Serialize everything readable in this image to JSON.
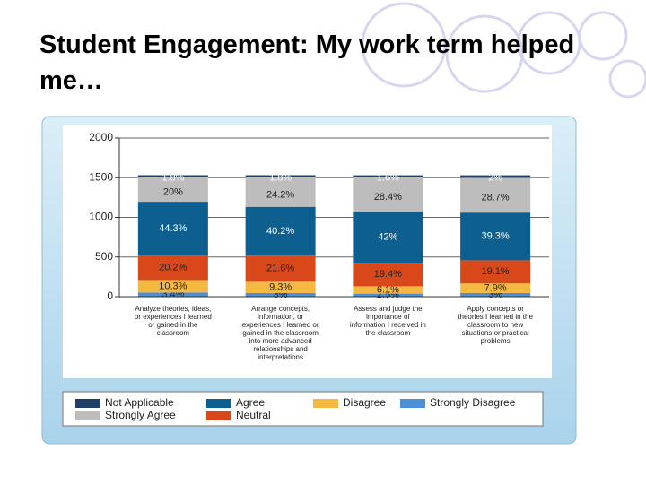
{
  "title": "Student Engagement: My work term helped me…",
  "chart_data": {
    "type": "stacked-bar",
    "categories": [
      "Analyze theories, ideas, or experiences I learned or gained in the classroom",
      "Arrange concepts, information, or experiences I learned or gained in the classroom into more advanced relationships and interpretations",
      "Assess and judge the importance of information I received in the classroom",
      "Apply concepts or theories I learned in the classroom to new situations or practical problems"
    ],
    "ylim": [
      0,
      2000
    ],
    "yticks": [
      0,
      500,
      1000,
      1500,
      2000
    ],
    "series": [
      {
        "name": "Strongly Disagree",
        "color": "#4a8fd8",
        "values": [
          52,
          46,
          38,
          46
        ],
        "value_labels": [
          "3.4%",
          "3%",
          "2.5%",
          "3%"
        ]
      },
      {
        "name": "Disagree",
        "color": "#f5b942",
        "values": [
          158,
          142,
          93,
          121
        ],
        "value_labels": [
          "10.3%",
          "9.3%",
          "6.1%",
          "7.9%"
        ]
      },
      {
        "name": "Neutral",
        "color": "#d9481a",
        "values": [
          309,
          330,
          297,
          292
        ],
        "value_labels": [
          "20.2%",
          "21.6%",
          "19.4%",
          "19.1%"
        ]
      },
      {
        "name": "Agree",
        "color": "#0d5f8f",
        "values": [
          678,
          615,
          643,
          601
        ],
        "value_labels": [
          "44.3%",
          "40.2%",
          "42%",
          "39.3%"
        ]
      },
      {
        "name": "Strongly Agree",
        "color": "#bdbdbd",
        "values": [
          306,
          370,
          435,
          439
        ],
        "value_labels": [
          "20%",
          "24.2%",
          "28.4%",
          "28.7%"
        ]
      },
      {
        "name": "Not Applicable",
        "color": "#1f3f66",
        "values": [
          28,
          28,
          24,
          31
        ],
        "value_labels": [
          "1.8%",
          "1.8%",
          "1.6%",
          "2%"
        ]
      }
    ]
  }
}
